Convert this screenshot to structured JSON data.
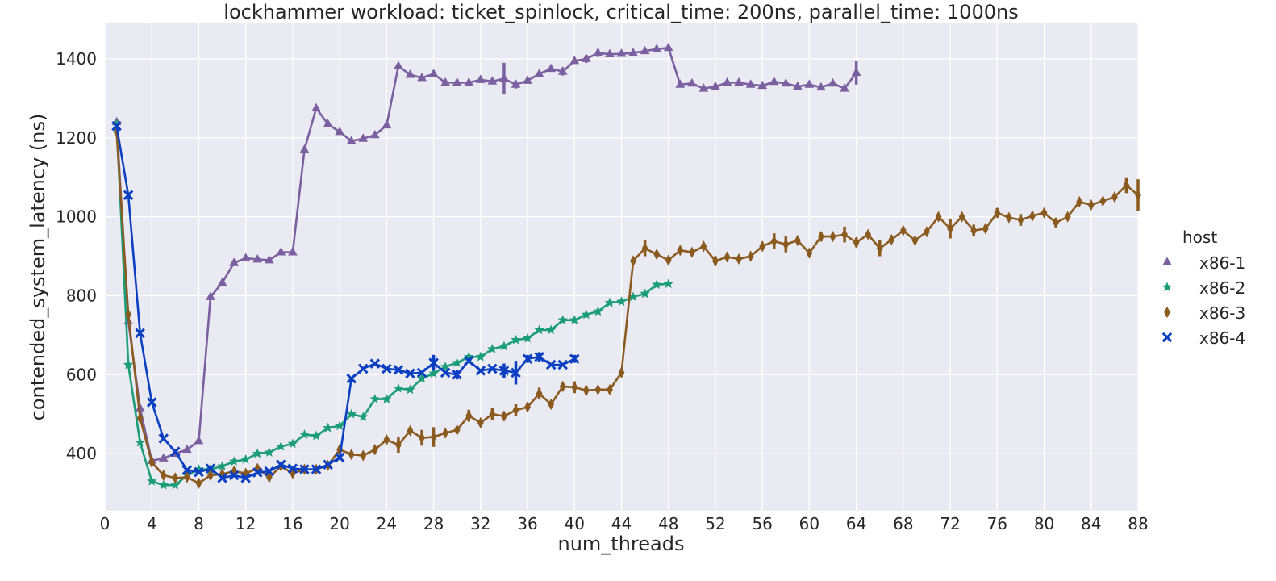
{
  "chart_data": {
    "type": "line",
    "title": "lockhammer workload: ticket_spinlock, critical_time: 200ns, parallel_time: 1000ns",
    "xlabel": "num_threads",
    "ylabel": "contended_system_latency (ns)",
    "xlim": [
      0,
      88
    ],
    "ylim": [
      255,
      1490
    ],
    "xticks": [
      0,
      4,
      8,
      12,
      16,
      20,
      24,
      28,
      32,
      36,
      40,
      44,
      48,
      52,
      56,
      60,
      64,
      68,
      72,
      76,
      80,
      84,
      88
    ],
    "yticks": [
      400,
      600,
      800,
      1000,
      1200,
      1400
    ],
    "grid": true,
    "background": "#eaeaf2",
    "legend": {
      "title": "host",
      "position": "right"
    },
    "series": [
      {
        "name": "x86-1",
        "color": "#7b5fa0",
        "marker": "triangle",
        "x": [
          1,
          2,
          3,
          4,
          5,
          6,
          7,
          8,
          9,
          10,
          11,
          12,
          13,
          14,
          15,
          16,
          17,
          18,
          19,
          20,
          21,
          22,
          23,
          24,
          25,
          26,
          27,
          28,
          29,
          30,
          31,
          32,
          33,
          34,
          35,
          36,
          37,
          38,
          39,
          40,
          41,
          42,
          43,
          44,
          45,
          46,
          47,
          48,
          49,
          50,
          51,
          52,
          53,
          54,
          55,
          56,
          57,
          58,
          59,
          60,
          61,
          62,
          63,
          64
        ],
        "y": [
          1240,
          735,
          515,
          382,
          388,
          400,
          410,
          432,
          797,
          833,
          883,
          895,
          892,
          890,
          910,
          910,
          1170,
          1275,
          1235,
          1215,
          1192,
          1198,
          1207,
          1232,
          1382,
          1360,
          1352,
          1362,
          1340,
          1340,
          1340,
          1347,
          1343,
          1350,
          1335,
          1345,
          1362,
          1375,
          1368,
          1395,
          1400,
          1415,
          1412,
          1413,
          1415,
          1420,
          1425,
          1428,
          1335,
          1338,
          1325,
          1330,
          1340,
          1340,
          1335,
          1332,
          1342,
          1338,
          1330,
          1335,
          1328,
          1338,
          1325,
          1365
        ],
        "err": [
          [
            7,
            3
          ],
          [
            15,
            3
          ],
          [
            19,
            3
          ],
          [
            27,
            3
          ],
          [
            34,
            40
          ],
          [
            35,
            10
          ],
          [
            39,
            10
          ],
          [
            41,
            10
          ],
          [
            42,
            10
          ],
          [
            64,
            30
          ]
        ]
      },
      {
        "name": "x86-2",
        "color": "#1b9e77",
        "marker": "star",
        "x": [
          1,
          2,
          3,
          4,
          5,
          6,
          7,
          8,
          9,
          10,
          11,
          12,
          13,
          14,
          15,
          16,
          17,
          18,
          19,
          20,
          21,
          22,
          23,
          24,
          25,
          26,
          27,
          28,
          29,
          30,
          31,
          32,
          33,
          34,
          35,
          36,
          37,
          38,
          39,
          40,
          41,
          42,
          43,
          44,
          45,
          46,
          47,
          48
        ],
        "y": [
          1235,
          625,
          428,
          330,
          320,
          320,
          345,
          360,
          360,
          368,
          380,
          385,
          400,
          403,
          418,
          425,
          448,
          445,
          465,
          470,
          500,
          493,
          538,
          538,
          565,
          562,
          590,
          603,
          620,
          630,
          645,
          645,
          665,
          672,
          688,
          692,
          713,
          713,
          738,
          738,
          752,
          760,
          782,
          785,
          797,
          805,
          828,
          830
        ]
      },
      {
        "name": "x86-3",
        "color": "#8b5a1f",
        "marker": "diamond",
        "x": [
          1,
          2,
          3,
          4,
          5,
          6,
          7,
          8,
          9,
          10,
          11,
          12,
          13,
          14,
          15,
          16,
          17,
          18,
          19,
          20,
          21,
          22,
          23,
          24,
          25,
          26,
          27,
          28,
          29,
          30,
          31,
          32,
          33,
          34,
          35,
          36,
          37,
          38,
          39,
          40,
          41,
          42,
          43,
          44,
          45,
          46,
          47,
          48,
          49,
          50,
          51,
          52,
          53,
          54,
          55,
          56,
          57,
          58,
          59,
          60,
          61,
          62,
          63,
          64,
          65,
          66,
          67,
          68,
          69,
          70,
          71,
          72,
          73,
          74,
          75,
          76,
          77,
          78,
          79,
          80,
          81,
          82,
          83,
          84,
          85,
          86,
          87,
          88
        ],
        "y": [
          1215,
          752,
          490,
          378,
          345,
          338,
          340,
          325,
          345,
          348,
          355,
          350,
          362,
          340,
          368,
          350,
          360,
          360,
          370,
          410,
          398,
          395,
          410,
          435,
          422,
          458,
          440,
          442,
          452,
          460,
          496,
          478,
          500,
          495,
          510,
          518,
          552,
          525,
          570,
          568,
          560,
          562,
          562,
          605,
          888,
          920,
          905,
          890,
          915,
          910,
          925,
          888,
          898,
          893,
          900,
          925,
          938,
          930,
          940,
          908,
          950,
          950,
          955,
          935,
          955,
          920,
          942,
          965,
          940,
          962,
          1000,
          970,
          1000,
          965,
          970,
          1010,
          998,
          992,
          1002,
          1010,
          985,
          1000,
          1038,
          1030,
          1040,
          1050,
          1080,
          1055
        ],
        "err": [
          [
            25,
            20
          ],
          [
            27,
            20
          ],
          [
            28,
            25
          ],
          [
            31,
            15
          ],
          [
            33,
            15
          ],
          [
            35,
            15
          ],
          [
            37,
            15
          ],
          [
            40,
            15
          ],
          [
            41,
            12
          ],
          [
            46,
            20
          ],
          [
            52,
            12
          ],
          [
            57,
            20
          ],
          [
            58,
            20
          ],
          [
            61,
            12
          ],
          [
            63,
            20
          ],
          [
            64,
            12
          ],
          [
            66,
            20
          ],
          [
            72,
            25
          ],
          [
            74,
            15
          ],
          [
            76,
            12
          ],
          [
            78,
            15
          ],
          [
            81,
            12
          ],
          [
            87,
            20
          ],
          [
            88,
            40
          ]
        ]
      },
      {
        "name": "x86-4",
        "color": "#0a3fc2",
        "marker": "x",
        "x": [
          1,
          2,
          3,
          4,
          5,
          6,
          7,
          8,
          9,
          10,
          11,
          12,
          13,
          14,
          15,
          16,
          17,
          18,
          19,
          20,
          21,
          22,
          23,
          24,
          25,
          26,
          27,
          28,
          29,
          30,
          31,
          32,
          33,
          34,
          35,
          36,
          37,
          38,
          39,
          40
        ],
        "y": [
          1230,
          1055,
          705,
          530,
          438,
          405,
          358,
          353,
          362,
          338,
          345,
          338,
          352,
          355,
          372,
          362,
          360,
          360,
          372,
          390,
          590,
          615,
          628,
          615,
          612,
          603,
          605,
          630,
          605,
          600,
          635,
          610,
          615,
          610,
          605,
          640,
          645,
          625,
          625,
          640
        ],
        "err": [
          [
            28,
            20
          ],
          [
            30,
            12
          ],
          [
            34,
            18
          ],
          [
            35,
            30
          ],
          [
            36,
            10
          ],
          [
            37,
            12
          ],
          [
            40,
            10
          ]
        ]
      }
    ]
  }
}
